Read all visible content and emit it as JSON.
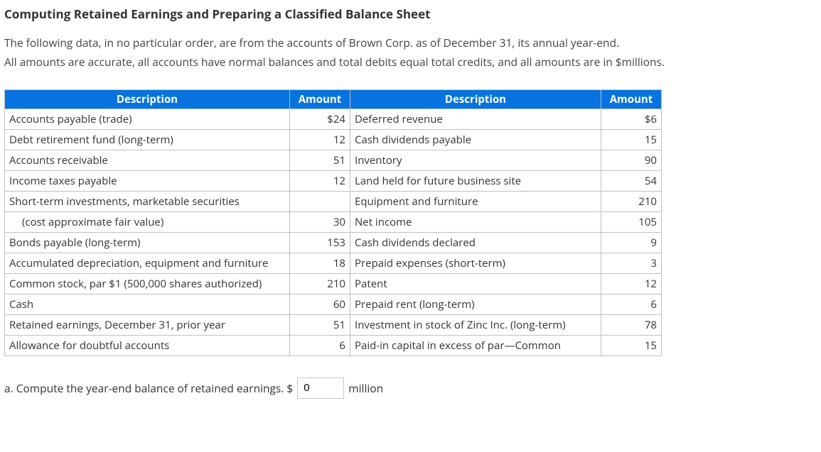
{
  "heading": "Computing Retained Earnings and Preparing a Classified Balance Sheet",
  "intro": {
    "line1": "The following data, in no particular order, are from the accounts of Brown Corp. as of December 31, its annual year-end.",
    "line2": "All amounts are accurate, all accounts have normal balances and total debits equal total credits, and all amounts are in $millions."
  },
  "table": {
    "headers": {
      "desc1": "Description",
      "amt1": "Amount",
      "desc2": "Description",
      "amt2": "Amount"
    },
    "rows": [
      {
        "d1": "Accounts payable (trade)",
        "a1": "$24",
        "d2": "Deferred revenue",
        "a2": "$6"
      },
      {
        "d1": "Debt retirement fund (long-term)",
        "a1": "12",
        "d2": "Cash dividends payable",
        "a2": "15"
      },
      {
        "d1": "Accounts receivable",
        "a1": "51",
        "d2": "Inventory",
        "a2": "90"
      },
      {
        "d1": "Income taxes payable",
        "a1": "12",
        "d2": "Land held for future business site",
        "a2": "54"
      },
      {
        "d1": "Short-term investments, marketable securities",
        "a1": "",
        "d2": "Equipment and furniture",
        "a2": "210"
      },
      {
        "d1_indent": true,
        "d1": "(cost approximate fair value)",
        "a1": "30",
        "d2": "Net income",
        "a2": "105"
      },
      {
        "d1": "Bonds payable (long-term)",
        "a1": "153",
        "d2": "Cash dividends declared",
        "a2": "9"
      },
      {
        "d1": "Accumulated depreciation, equipment and furniture",
        "a1": "18",
        "d2": "Prepaid expenses (short-term)",
        "a2": "3"
      },
      {
        "d1": "Common stock, par $1 (500,000 shares authorized)",
        "a1": "210",
        "d2": "Patent",
        "a2": "12"
      },
      {
        "d1": "Cash",
        "a1": "60",
        "d2": "Prepaid rent (long-term)",
        "a2": "6"
      },
      {
        "d1": "Retained earnings, December 31, prior year",
        "a1": "51",
        "d2": "Investment in stock of Zinc Inc. (long-term)",
        "a2": "78"
      },
      {
        "d1": "Allowance for doubtful accounts",
        "a1": "6",
        "d2": "Paid-in capital in excess of par—Common",
        "a2": "15"
      }
    ]
  },
  "question": {
    "prefix": "a. Compute the year-end balance of retained earnings. $",
    "value": "0",
    "suffix": "million"
  },
  "style": {
    "header_bg": "#0673e0",
    "header_fg": "#ffffff",
    "border_color": "#bfbfbf",
    "text_color": "#333333"
  }
}
